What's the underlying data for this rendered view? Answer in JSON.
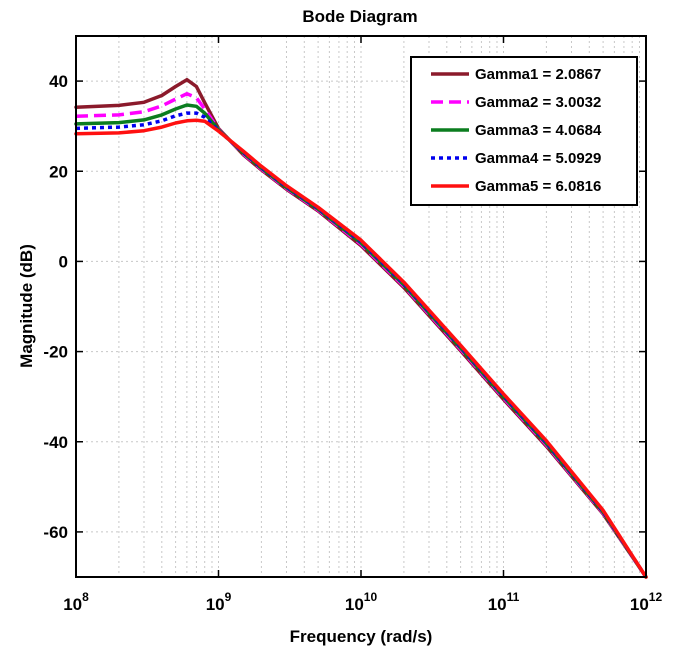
{
  "chart_data": {
    "type": "line",
    "title": "Bode Diagram",
    "xlabel": "Frequency  (rad/s)",
    "ylabel": "Magnitude (dB)",
    "xscale": "log",
    "xlim": [
      100000000,
      1000000000000
    ],
    "ylim": [
      -70,
      50
    ],
    "grid": true,
    "legend_position": "top-right",
    "x_ticks": [
      {
        "base": "10",
        "exp": "8",
        "value": 100000000
      },
      {
        "base": "10",
        "exp": "9",
        "value": 1000000000
      },
      {
        "base": "10",
        "exp": "10",
        "value": 10000000000
      },
      {
        "base": "10",
        "exp": "11",
        "value": 100000000000
      },
      {
        "base": "10",
        "exp": "12",
        "value": 1000000000000
      }
    ],
    "y_ticks": [
      {
        "label": "40",
        "value": 40
      },
      {
        "label": "20",
        "value": 20
      },
      {
        "label": "0",
        "value": 0
      },
      {
        "label": "-20",
        "value": -20
      },
      {
        "label": "-40",
        "value": -40
      },
      {
        "label": "-60",
        "value": -60
      }
    ],
    "x": [
      100000000,
      200000000,
      300000000,
      400000000,
      500000000,
      600000000,
      700000000,
      800000000,
      1000000000,
      1500000000,
      2000000000,
      3000000000,
      5000000000,
      10000000000,
      20000000000,
      50000000000,
      100000000000,
      200000000000,
      500000000000,
      1000000000000
    ],
    "series": [
      {
        "name": "Gamma1 = 2.0867",
        "color": "#8b1a2b",
        "dash": "solid",
        "values": [
          34.2,
          34.6,
          35.3,
          36.8,
          38.8,
          40.3,
          38.8,
          35.2,
          29.5,
          23.6,
          20.3,
          16.0,
          11.2,
          3.5,
          -5.8,
          -19.8,
          -30.6,
          -41.0,
          -56.0,
          -70.0
        ]
      },
      {
        "name": "Gamma2 = 3.0032",
        "color": "#ff00ff",
        "dash": "dashed",
        "values": [
          32.2,
          32.5,
          33.2,
          34.5,
          36.0,
          37.2,
          36.3,
          33.8,
          29.3,
          23.8,
          20.5,
          16.2,
          11.4,
          3.8,
          -5.5,
          -19.5,
          -30.3,
          -40.7,
          -55.8,
          -70.0
        ]
      },
      {
        "name": "Gamma3 = 4.0684",
        "color": "#0b7d1f",
        "dash": "solid",
        "values": [
          30.5,
          30.8,
          31.4,
          32.5,
          33.8,
          34.7,
          34.4,
          32.9,
          29.2,
          24.0,
          20.7,
          16.4,
          11.6,
          4.1,
          -5.2,
          -19.2,
          -30.0,
          -40.4,
          -55.6,
          -70.0
        ]
      },
      {
        "name": "Gamma4 = 5.0929",
        "color": "#0000ee",
        "dash": "dotted",
        "values": [
          29.5,
          29.8,
          30.3,
          31.2,
          32.3,
          32.9,
          32.9,
          32.0,
          29.0,
          24.2,
          20.9,
          16.6,
          11.8,
          4.4,
          -4.9,
          -18.9,
          -29.7,
          -40.1,
          -55.4,
          -70.0
        ]
      },
      {
        "name": "Gamma5 = 6.0816",
        "color": "#ff1010",
        "dash": "solid",
        "values": [
          28.3,
          28.5,
          29.0,
          29.8,
          30.7,
          31.2,
          31.3,
          31.1,
          28.9,
          24.4,
          21.1,
          16.8,
          12.0,
          4.7,
          -4.6,
          -18.6,
          -29.4,
          -39.8,
          -55.2,
          -70.0
        ]
      }
    ]
  }
}
